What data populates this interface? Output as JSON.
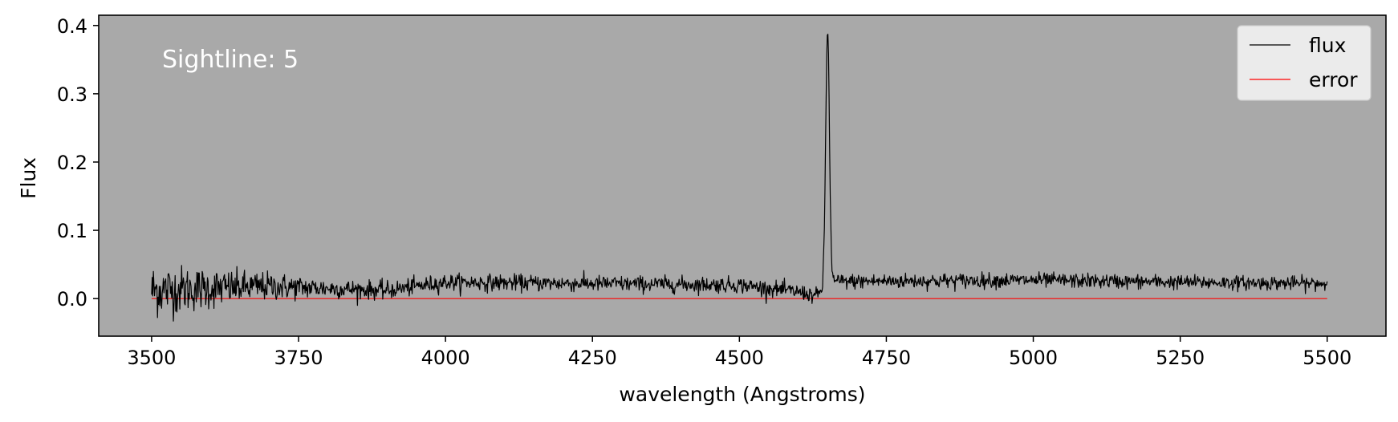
{
  "chart_data": {
    "type": "line",
    "xlabel": "wavelength (Angstroms)",
    "ylabel": "Flux",
    "xlim": [
      3410,
      5600
    ],
    "ylim": [
      -0.055,
      0.415
    ],
    "xticks": [
      3500,
      3750,
      4000,
      4250,
      4500,
      4750,
      5000,
      5250,
      5500
    ],
    "yticks": [
      0.0,
      0.1,
      0.2,
      0.3,
      0.4
    ],
    "ytick_labels": [
      "0.0",
      "0.1",
      "0.2",
      "0.3",
      "0.4"
    ],
    "grid": false,
    "legend": {
      "placement": "top-right",
      "entries": [
        "flux",
        "error"
      ]
    },
    "annotation": "Sightline: 5",
    "plot_background": "#a9a9a9",
    "legend_background": "#eeeeee",
    "series": [
      {
        "name": "flux",
        "color": "#000000",
        "x_range": [
          3500,
          5500
        ],
        "samples": 2000,
        "baseline_by_x": [
          [
            3500,
            0.012
          ],
          [
            3700,
            0.018
          ],
          [
            3900,
            0.012
          ],
          [
            4000,
            0.024
          ],
          [
            4250,
            0.022
          ],
          [
            4500,
            0.02
          ],
          [
            4600,
            0.01
          ],
          [
            4630,
            0.004
          ],
          [
            4660,
            0.025
          ],
          [
            5000,
            0.027
          ],
          [
            5250,
            0.024
          ],
          [
            5500,
            0.022
          ]
        ],
        "noise_sigma_by_x": [
          [
            3500,
            0.02
          ],
          [
            3650,
            0.012
          ],
          [
            3800,
            0.007
          ],
          [
            4000,
            0.006
          ],
          [
            5500,
            0.005
          ]
        ],
        "peak": {
          "x": 4650,
          "y": 0.393
        },
        "min_y": -0.033,
        "max_noise_y": 0.073
      },
      {
        "name": "error",
        "color": "#ff0000",
        "x": [
          3500,
          5500
        ],
        "y": [
          0.0,
          0.0
        ]
      }
    ]
  }
}
